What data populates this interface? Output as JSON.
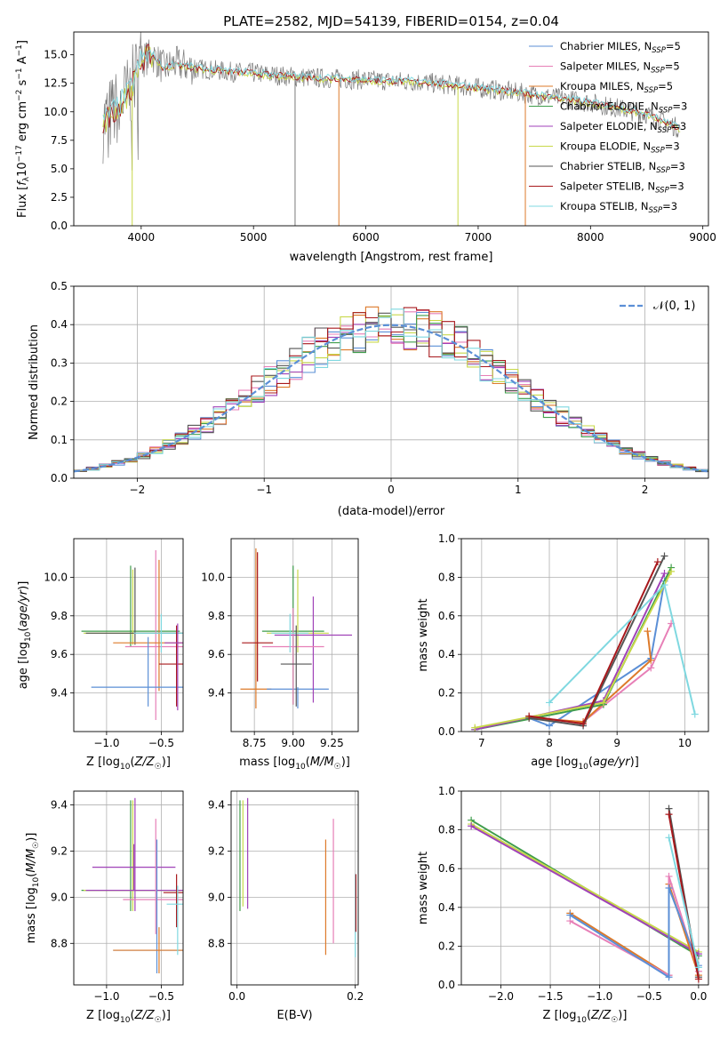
{
  "figure": {
    "title": "PLATE=2582, MJD=54139, FIBERID=0154, z=0.04"
  },
  "colors": {
    "chabrier_miles": "#5b8fd6",
    "salpeter_miles": "#e77fb7",
    "kroupa_miles": "#dd7a2a",
    "chabrier_elodie": "#3f9d4b",
    "salpeter_elodie": "#a042b8",
    "kroupa_elodie": "#c8d84a",
    "chabrier_stelib": "#555555",
    "salpeter_stelib": "#a8181c",
    "kroupa_stelib": "#7fd8e0",
    "spectrum_gray": "#7a7a7a",
    "normal_curve": "#5b8fd6",
    "grid": "#b0b0b0"
  },
  "chart_data": [
    {
      "type": "line",
      "id": "spectrum",
      "title": "PLATE=2582, MJD=54139, FIBERID=0154, z=0.04",
      "xlabel": "wavelength [Angstrom, rest frame]",
      "ylabel": "Flux [f_λ 10^-17 erg cm^-2 s^-1 A^-1]",
      "xlim": [
        3400,
        9050
      ],
      "ylim": [
        0,
        17
      ],
      "xticks": [
        "4000",
        "5000",
        "6000",
        "7000",
        "8000",
        "9000"
      ],
      "yticks": [
        "0.0",
        "2.5",
        "5.0",
        "7.5",
        "10.0",
        "12.5",
        "15.0"
      ],
      "grid": false,
      "legend_position": "top-right",
      "legend": [
        {
          "label": "Chabrier MILES, N",
          "sub": "SSP",
          "suffix": "=5",
          "color": "#5b8fd6"
        },
        {
          "label": "Salpeter MILES, N",
          "sub": "SSP",
          "suffix": "=5",
          "color": "#e77fb7"
        },
        {
          "label": "Kroupa MILES, N",
          "sub": "SSP",
          "suffix": "=5",
          "color": "#dd7a2a"
        },
        {
          "label": "Chabrier ELODIE, N",
          "sub": "SSP",
          "suffix": "=3",
          "color": "#3f9d4b"
        },
        {
          "label": "Salpeter ELODIE, N",
          "sub": "SSP",
          "suffix": "=3",
          "color": "#a042b8"
        },
        {
          "label": "Kroupa ELODIE, N",
          "sub": "SSP",
          "suffix": "=3",
          "color": "#c8d84a"
        },
        {
          "label": "Chabrier STELIB, N",
          "sub": "SSP",
          "suffix": "=3",
          "color": "#555555"
        },
        {
          "label": "Salpeter STELIB, N",
          "sub": "SSP",
          "suffix": "=3",
          "color": "#a8181c"
        },
        {
          "label": "Kroupa STELIB, N",
          "sub": "SSP",
          "suffix": "=3",
          "color": "#7fd8e0"
        }
      ],
      "continuum": {
        "wavelength": [
          3650,
          3700,
          3800,
          3900,
          4000,
          4100,
          4200,
          4300,
          4500,
          4800,
          5000,
          5200,
          5500,
          6000,
          6500,
          7000,
          7500,
          8000,
          8500,
          8800
        ],
        "flux": [
          8.8,
          9.5,
          10.5,
          11.8,
          14.5,
          15.0,
          13.8,
          14.2,
          13.8,
          13.5,
          13.4,
          13.2,
          13.0,
          12.8,
          12.6,
          12.1,
          11.5,
          10.8,
          9.8,
          8.5
        ]
      },
      "dropouts": [
        {
          "wavelength": 3920,
          "color": "#c8d84a"
        },
        {
          "wavelength": 5760,
          "color": "#dd7a2a"
        },
        {
          "wavelength": 6820,
          "color": "#c8d84a"
        },
        {
          "wavelength": 7420,
          "color": "#dd7a2a"
        },
        {
          "wavelength": 5370,
          "color": "#7a7a7a"
        }
      ]
    },
    {
      "type": "bar",
      "id": "residuals",
      "xlabel": "(data-model)/error",
      "ylabel": "Normed distribution",
      "xlim": [
        -2.5,
        2.5
      ],
      "ylim": [
        0,
        0.5
      ],
      "xticks": [
        "−2",
        "−1",
        "0",
        "1",
        "2"
      ],
      "yticks": [
        "0.0",
        "0.1",
        "0.2",
        "0.3",
        "0.4",
        "0.5"
      ],
      "grid": true,
      "legend_position": "top-right",
      "legend": [
        {
          "label": "𝒩(0, 1)",
          "color": "#5b8fd6"
        }
      ],
      "bins": {
        "start": -2.5,
        "width": 0.1,
        "count": 50
      }
    },
    {
      "type": "scatter",
      "id": "age_vs_Z",
      "xlabel": "Z [log10(Z/Z☉)]",
      "ylabel": "age  [log10(age/yr)]",
      "xlim": [
        -1.3,
        -0.3
      ],
      "ylim": [
        9.2,
        10.2
      ],
      "xticks": [
        "−1.0",
        "−0.5"
      ],
      "yticks": [
        "9.4",
        "9.6",
        "9.8",
        "10.0"
      ],
      "grid": true,
      "errorbars": [
        {
          "x": -0.78,
          "xerr": 0.45,
          "y": 9.72,
          "yerr": [
            0.08,
            0.34
          ],
          "color": "#3f9d4b"
        },
        {
          "x": -0.76,
          "xerr": 0.45,
          "y": 9.71,
          "yerr": [
            0.06,
            0.33
          ],
          "color": "#c8d84a"
        },
        {
          "x": -0.74,
          "xerr": 0.45,
          "y": 9.71,
          "yerr": [
            0.06,
            0.34
          ],
          "color": "#555555"
        },
        {
          "x": -0.55,
          "xerr": 0.28,
          "y": 9.64,
          "yerr": [
            0.38,
            0.5
          ],
          "color": "#e77fb7"
        },
        {
          "x": -0.52,
          "xerr": 0.42,
          "y": 9.66,
          "yerr": [
            0.25,
            0.43
          ],
          "color": "#dd7a2a"
        },
        {
          "x": -0.62,
          "xerr": 0.52,
          "y": 9.43,
          "yerr": [
            0.1,
            0.26
          ],
          "color": "#5b8fd6"
        },
        {
          "x": -0.5,
          "xerr": 0.25,
          "y": 9.71,
          "yerr": [
            0.1,
            0.1
          ],
          "color": "#7fd8e0"
        },
        {
          "x": -0.36,
          "xerr": 0.16,
          "y": 9.55,
          "yerr": [
            0.22,
            0.2
          ],
          "color": "#a8181c"
        },
        {
          "x": -0.35,
          "xerr": 0.12,
          "y": 9.66,
          "yerr": [
            0.35,
            0.1
          ],
          "color": "#a042b8"
        }
      ]
    },
    {
      "type": "scatter",
      "id": "age_vs_mass",
      "xlabel": "mass [log10(M/M☉)]",
      "ylabel": "",
      "xlim": [
        8.6,
        9.42
      ],
      "ylim": [
        9.2,
        10.2
      ],
      "xticks": [
        "8.75",
        "9.00",
        "9.25"
      ],
      "yticks": [
        "9.4",
        "9.6",
        "9.8",
        "10.0"
      ],
      "grid": true,
      "errorbars": [
        {
          "x": 8.76,
          "xerr": 0.1,
          "y": 9.42,
          "yerr": [
            0.1,
            0.73
          ],
          "color": "#dd7a2a"
        },
        {
          "x": 8.77,
          "xerr": 0.1,
          "y": 9.66,
          "yerr": [
            0.2,
            0.47
          ],
          "color": "#a8181c"
        },
        {
          "x": 9.03,
          "xerr": 0.2,
          "y": 9.42,
          "yerr": [
            0.1,
            0.01
          ],
          "color": "#5b8fd6"
        },
        {
          "x": 9.0,
          "xerr": 0.2,
          "y": 9.72,
          "yerr": [
            0.38,
            0.34
          ],
          "color": "#3f9d4b"
        },
        {
          "x": 9.03,
          "xerr": 0.2,
          "y": 9.71,
          "yerr": [
            0.1,
            0.33
          ],
          "color": "#c8d84a"
        },
        {
          "x": 9.13,
          "xerr": 0.25,
          "y": 9.7,
          "yerr": [
            0.35,
            0.2
          ],
          "color": "#a042b8"
        },
        {
          "x": 9.0,
          "xerr": 0.2,
          "y": 9.64,
          "yerr": [
            0.3,
            0.2
          ],
          "color": "#e77fb7"
        },
        {
          "x": 8.98,
          "xerr": 0.12,
          "y": 9.71,
          "yerr": [
            0.1,
            0.1
          ],
          "color": "#7fd8e0"
        },
        {
          "x": 9.02,
          "xerr": 0.1,
          "y": 9.55,
          "yerr": [
            0.22,
            0.2
          ],
          "color": "#555555"
        }
      ]
    },
    {
      "type": "line",
      "id": "massweight_vs_age",
      "xlabel": "age  [log10(age/yr)]",
      "ylabel": "mass weight",
      "xlim": [
        6.7,
        10.35
      ],
      "ylim": [
        0,
        1.0
      ],
      "xticks": [
        "7",
        "8",
        "9",
        "10"
      ],
      "yticks": [
        "0.0",
        "0.2",
        "0.4",
        "0.6",
        "0.8",
        "1.0"
      ],
      "grid": true,
      "series": [
        {
          "color": "#5b8fd6",
          "x": [
            7.7,
            8.0,
            9.5,
            9.7
          ],
          "y": [
            0.07,
            0.03,
            0.38,
            0.78
          ]
        },
        {
          "color": "#e77fb7",
          "x": [
            7.7,
            8.5,
            9.5,
            9.8
          ],
          "y": [
            0.07,
            0.05,
            0.33,
            0.56
          ]
        },
        {
          "color": "#dd7a2a",
          "x": [
            7.7,
            8.5,
            9.5,
            9.45
          ],
          "y": [
            0.07,
            0.05,
            0.37,
            0.52
          ]
        },
        {
          "color": "#3f9d4b",
          "x": [
            6.9,
            8.8,
            9.8
          ],
          "y": [
            0.01,
            0.14,
            0.85
          ]
        },
        {
          "color": "#a042b8",
          "x": [
            6.9,
            8.8,
            9.7
          ],
          "y": [
            0.01,
            0.16,
            0.82
          ]
        },
        {
          "color": "#c8d84a",
          "x": [
            6.9,
            8.8,
            9.8
          ],
          "y": [
            0.02,
            0.15,
            0.83
          ]
        },
        {
          "color": "#555555",
          "x": [
            7.7,
            8.5,
            9.7
          ],
          "y": [
            0.07,
            0.03,
            0.91
          ]
        },
        {
          "color": "#a8181c",
          "x": [
            7.7,
            8.5,
            9.6
          ],
          "y": [
            0.08,
            0.04,
            0.88
          ]
        },
        {
          "color": "#7fd8e0",
          "x": [
            8.0,
            9.7,
            10.15
          ],
          "y": [
            0.15,
            0.76,
            0.09
          ]
        }
      ]
    },
    {
      "type": "scatter",
      "id": "mass_vs_Z",
      "xlabel": "Z [log10(Z/Z☉)]",
      "ylabel": "mass [log10(M/M☉)]",
      "xlim": [
        -1.3,
        -0.3
      ],
      "ylim": [
        8.62,
        9.46
      ],
      "xticks": [
        "−1.0",
        "−0.5"
      ],
      "yticks": [
        "8.8",
        "9.0",
        "9.2",
        "9.4"
      ],
      "grid": true,
      "errorbars": [
        {
          "x": -0.78,
          "xerr": 0.45,
          "y": 9.03,
          "yerr": [
            0.09,
            0.39
          ],
          "color": "#3f9d4b"
        },
        {
          "x": -0.76,
          "xerr": 0.45,
          "y": 9.03,
          "yerr": [
            0.09,
            0.39
          ],
          "color": "#c8d84a"
        },
        {
          "x": -0.74,
          "xerr": 0.45,
          "y": 9.03,
          "yerr": [
            0.09,
            0.4
          ],
          "color": "#a042b8"
        },
        {
          "x": -0.75,
          "xerr": 0.38,
          "y": 9.13,
          "yerr": [
            0.1,
            0.1
          ],
          "color": "#a042b8"
        },
        {
          "x": -0.55,
          "xerr": 0.3,
          "y": 8.99,
          "yerr": [
            0.15,
            0.35
          ],
          "color": "#e77fb7"
        },
        {
          "x": -0.54,
          "xerr": 0.4,
          "y": 8.77,
          "yerr": [
            0.1,
            0.48
          ],
          "color": "#5b8fd6"
        },
        {
          "x": -0.52,
          "xerr": 0.42,
          "y": 8.77,
          "yerr": [
            0.1,
            0.1
          ],
          "color": "#dd7a2a"
        },
        {
          "x": -0.36,
          "xerr": 0.12,
          "y": 9.02,
          "yerr": [
            0.15,
            0.08
          ],
          "color": "#a8181c"
        },
        {
          "x": -0.35,
          "xerr": 0.1,
          "y": 8.97,
          "yerr": [
            0.22,
            0.08
          ],
          "color": "#7fd8e0"
        }
      ]
    },
    {
      "type": "scatter",
      "id": "mass_vs_EBV",
      "xlabel": "E(B-V)",
      "ylabel": "",
      "xlim": [
        -0.01,
        0.205
      ],
      "ylim": [
        8.62,
        9.46
      ],
      "xticks": [
        "0.0",
        "0.2"
      ],
      "yticks": [
        "8.8",
        "9.0",
        "9.2",
        "9.4"
      ],
      "grid": true,
      "errorbars": [
        {
          "x": 0.005,
          "y": 9.16,
          "yerr": [
            0.22,
            0.26
          ],
          "color": "#3f9d4b"
        },
        {
          "x": 0.01,
          "y": 9.2,
          "yerr": [
            0.24,
            0.22
          ],
          "color": "#c8d84a"
        },
        {
          "x": 0.018,
          "y": 9.2,
          "yerr": [
            0.25,
            0.23
          ],
          "color": "#a042b8"
        },
        {
          "x": 0.15,
          "y": 9.0,
          "yerr": [
            0.25,
            0.25
          ],
          "color": "#dd7a2a"
        },
        {
          "x": 0.163,
          "y": 9.0,
          "yerr": [
            0.2,
            0.34
          ],
          "color": "#e77fb7"
        },
        {
          "x": 0.2,
          "y": 8.9,
          "yerr": [
            0.16,
            0.2
          ],
          "color": "#7fd8e0"
        },
        {
          "x": 0.201,
          "y": 8.95,
          "yerr": [
            0.1,
            0.15
          ],
          "color": "#a8181c"
        }
      ]
    },
    {
      "type": "line",
      "id": "massweight_vs_Z",
      "xlabel": "Z [log10(Z/Z☉)]",
      "ylabel": "mass weight",
      "xlim": [
        -2.4,
        0.1
      ],
      "ylim": [
        0,
        1.0
      ],
      "xticks": [
        "−2.0",
        "−1.5",
        "−1.0",
        "−0.5",
        "0.0"
      ],
      "yticks": [
        "0.0",
        "0.2",
        "0.4",
        "0.6",
        "0.8",
        "1.0"
      ],
      "grid": true,
      "series": [
        {
          "color": "#3f9d4b",
          "x": [
            -2.3,
            0.0
          ],
          "y": [
            0.85,
            0.15
          ]
        },
        {
          "color": "#c8d84a",
          "x": [
            -2.3,
            0.0
          ],
          "y": [
            0.83,
            0.17
          ]
        },
        {
          "color": "#a042b8",
          "x": [
            -2.3,
            0.0
          ],
          "y": [
            0.82,
            0.16
          ]
        },
        {
          "color": "#dd7a2a",
          "x": [
            -1.3,
            -0.3,
            -0.3,
            0.0
          ],
          "y": [
            0.37,
            0.05,
            0.52,
            0.05
          ]
        },
        {
          "color": "#e77fb7",
          "x": [
            -1.3,
            -0.3,
            -0.3,
            0.0
          ],
          "y": [
            0.33,
            0.05,
            0.56,
            0.07
          ]
        },
        {
          "color": "#5b8fd6",
          "x": [
            -1.3,
            -0.3,
            -0.3,
            0.0
          ],
          "y": [
            0.36,
            0.04,
            0.5,
            0.1
          ]
        },
        {
          "color": "#555555",
          "x": [
            -0.3,
            0.0
          ],
          "y": [
            0.91,
            0.04
          ]
        },
        {
          "color": "#a8181c",
          "x": [
            -0.3,
            0.0
          ],
          "y": [
            0.88,
            0.03
          ]
        },
        {
          "color": "#7fd8e0",
          "x": [
            -0.3,
            0.0
          ],
          "y": [
            0.76,
            0.09
          ]
        }
      ]
    }
  ]
}
